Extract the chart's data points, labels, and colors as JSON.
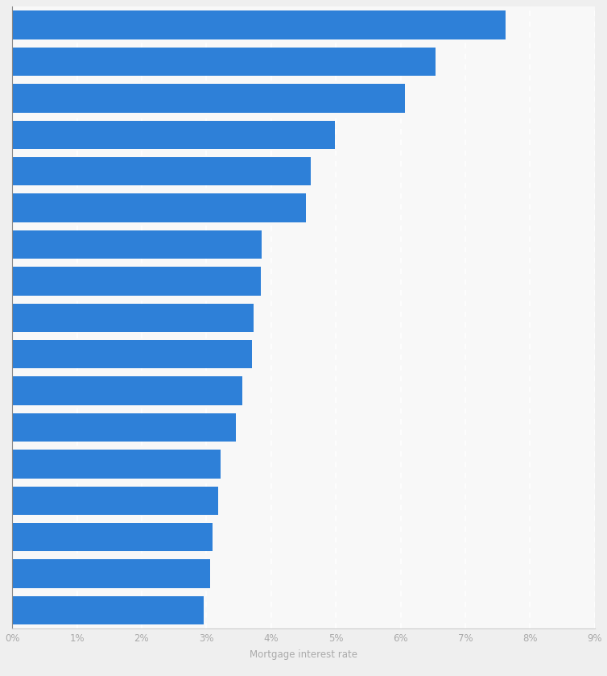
{
  "values": [
    7.62,
    6.54,
    6.07,
    4.99,
    4.61,
    4.54,
    3.85,
    3.84,
    3.73,
    3.7,
    3.55,
    3.45,
    3.22,
    3.18,
    3.1,
    3.06,
    2.96
  ],
  "bar_color": "#2e80d8",
  "background_color": "#efefef",
  "plot_background_color": "#f8f8f8",
  "grid_color": "#ffffff",
  "xlabel": "Mortgage interest rate",
  "xlim": [
    0,
    9
  ],
  "xticks": [
    0,
    1,
    2,
    3,
    4,
    5,
    6,
    7,
    8,
    9
  ],
  "xlabel_fontsize": 8.5,
  "tick_fontsize": 8.5,
  "tick_color": "#aaaaaa",
  "bar_height": 0.78
}
